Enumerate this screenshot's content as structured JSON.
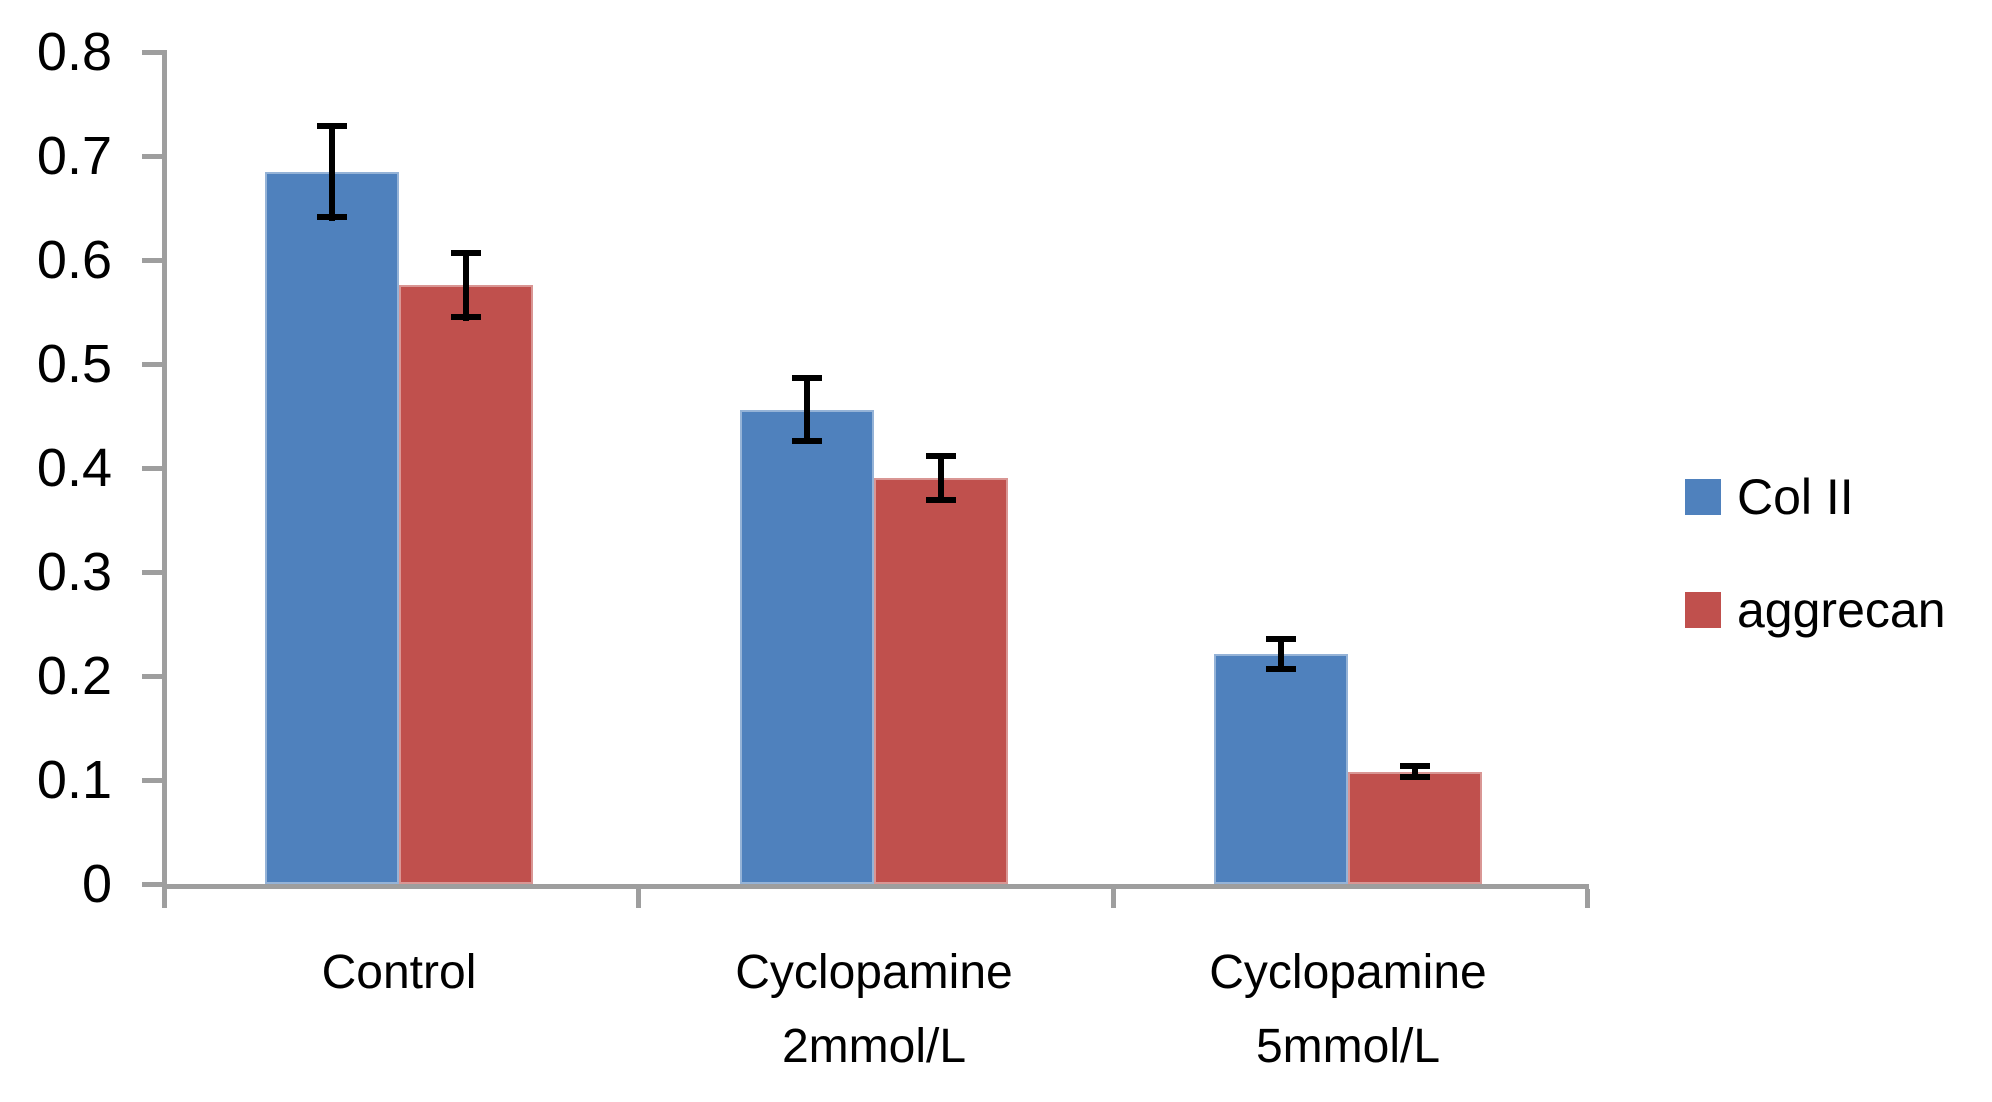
{
  "chart_data": {
    "type": "bar",
    "title": "",
    "xlabel": "",
    "ylabel": "",
    "categories": [
      "Control",
      "Cyclopamine 2mmol/L",
      "Cyclopamine 5mmol/L"
    ],
    "category_label_lines": [
      [
        "Control"
      ],
      [
        "Cyclopamine",
        "2mmol/L"
      ],
      [
        "Cyclopamine",
        "5mmol/L"
      ]
    ],
    "series": [
      {
        "name": "Col II",
        "color": "#4F81BD",
        "border_color": "#95B3D7",
        "values": [
          0.685,
          0.456,
          0.221
        ],
        "errors": [
          0.047,
          0.033,
          0.017
        ]
      },
      {
        "name": "aggrecan",
        "color": "#C0504D",
        "border_color": "#D99694",
        "values": [
          0.576,
          0.39,
          0.108
        ],
        "errors": [
          0.034,
          0.024,
          0.008
        ]
      }
    ],
    "ylim": [
      0,
      0.8
    ],
    "ytick_step": 0.1,
    "ytick_labels": [
      "0",
      "0.1",
      "0.2",
      "0.3",
      "0.4",
      "0.5",
      "0.6",
      "0.7",
      "0.8"
    ],
    "grid": false,
    "legend_position": "right",
    "error_bars": true,
    "axis_color": "#9E9E9E",
    "error_bar_color": "#000000",
    "text_color": "#000000",
    "background_color": "#FFFFFF"
  }
}
